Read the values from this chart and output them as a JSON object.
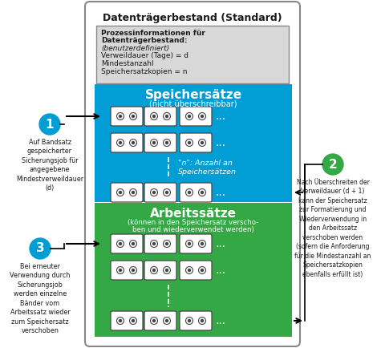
{
  "title": "Datenträgerbestand (Standard)",
  "speicher_title": "Speichersätze",
  "speicher_subtitle": "(nicht überschreibbar)",
  "arbeits_title": "Arbeitssätze",
  "arbeits_subtitle": "(können in den Speichersatz verscho-\nben und wiederverwendet werden)",
  "n_label": "\"n\": Anzahl an\nSpeichersätzen",
  "info_line1": "Prozessinformationen für",
  "info_line2": "Datenträgerbestand:",
  "info_line3": "(benutzerdefiniert)",
  "info_line4": "Verweildauer (Tage) = d",
  "info_line5": "Mindestanzahl",
  "info_line6": "Speichersatzkopien = n",
  "label1_title": "1",
  "label1_text": "Auf Bandsatz\ngespeicherter\nSicherungsjob für\nangegebene\nMindestverweildauer\n(d)",
  "label2_title": "2",
  "label2_text": "Nach Überschreiten der\nVerweildauer (d + 1)\nkann der Speichersatz\nzur Formatierung und\nWiederverwendung in\nden Arbeitssatz\nverschoben werden\n(sofern die Anforderung\nfür die Mindestanzahl an\nSpeichersatzkopien\nebenfalls erfüllt ist)",
  "label3_title": "3",
  "label3_text": "Bei erneuter\nVerwendung durch\nSicherungsjob\nwerden einzelne\nBänder vom\nArbeitssatz wieder\nzum Speichersatz\nverschoben",
  "speicher_color": "#009ed4",
  "arbeits_color": "#33a844",
  "circle1_color": "#009ed4",
  "circle2_color": "#33a844",
  "circle3_color": "#009ed4",
  "tape_bg": "#ffffff",
  "tape_border": "#444444",
  "text_white": "#ffffff",
  "text_dark": "#1a1a1a",
  "outer_border": "#888888",
  "info_bg": "#d8d8d8",
  "info_border": "#888888",
  "figsize": [
    4.75,
    4.34
  ],
  "dpi": 100
}
